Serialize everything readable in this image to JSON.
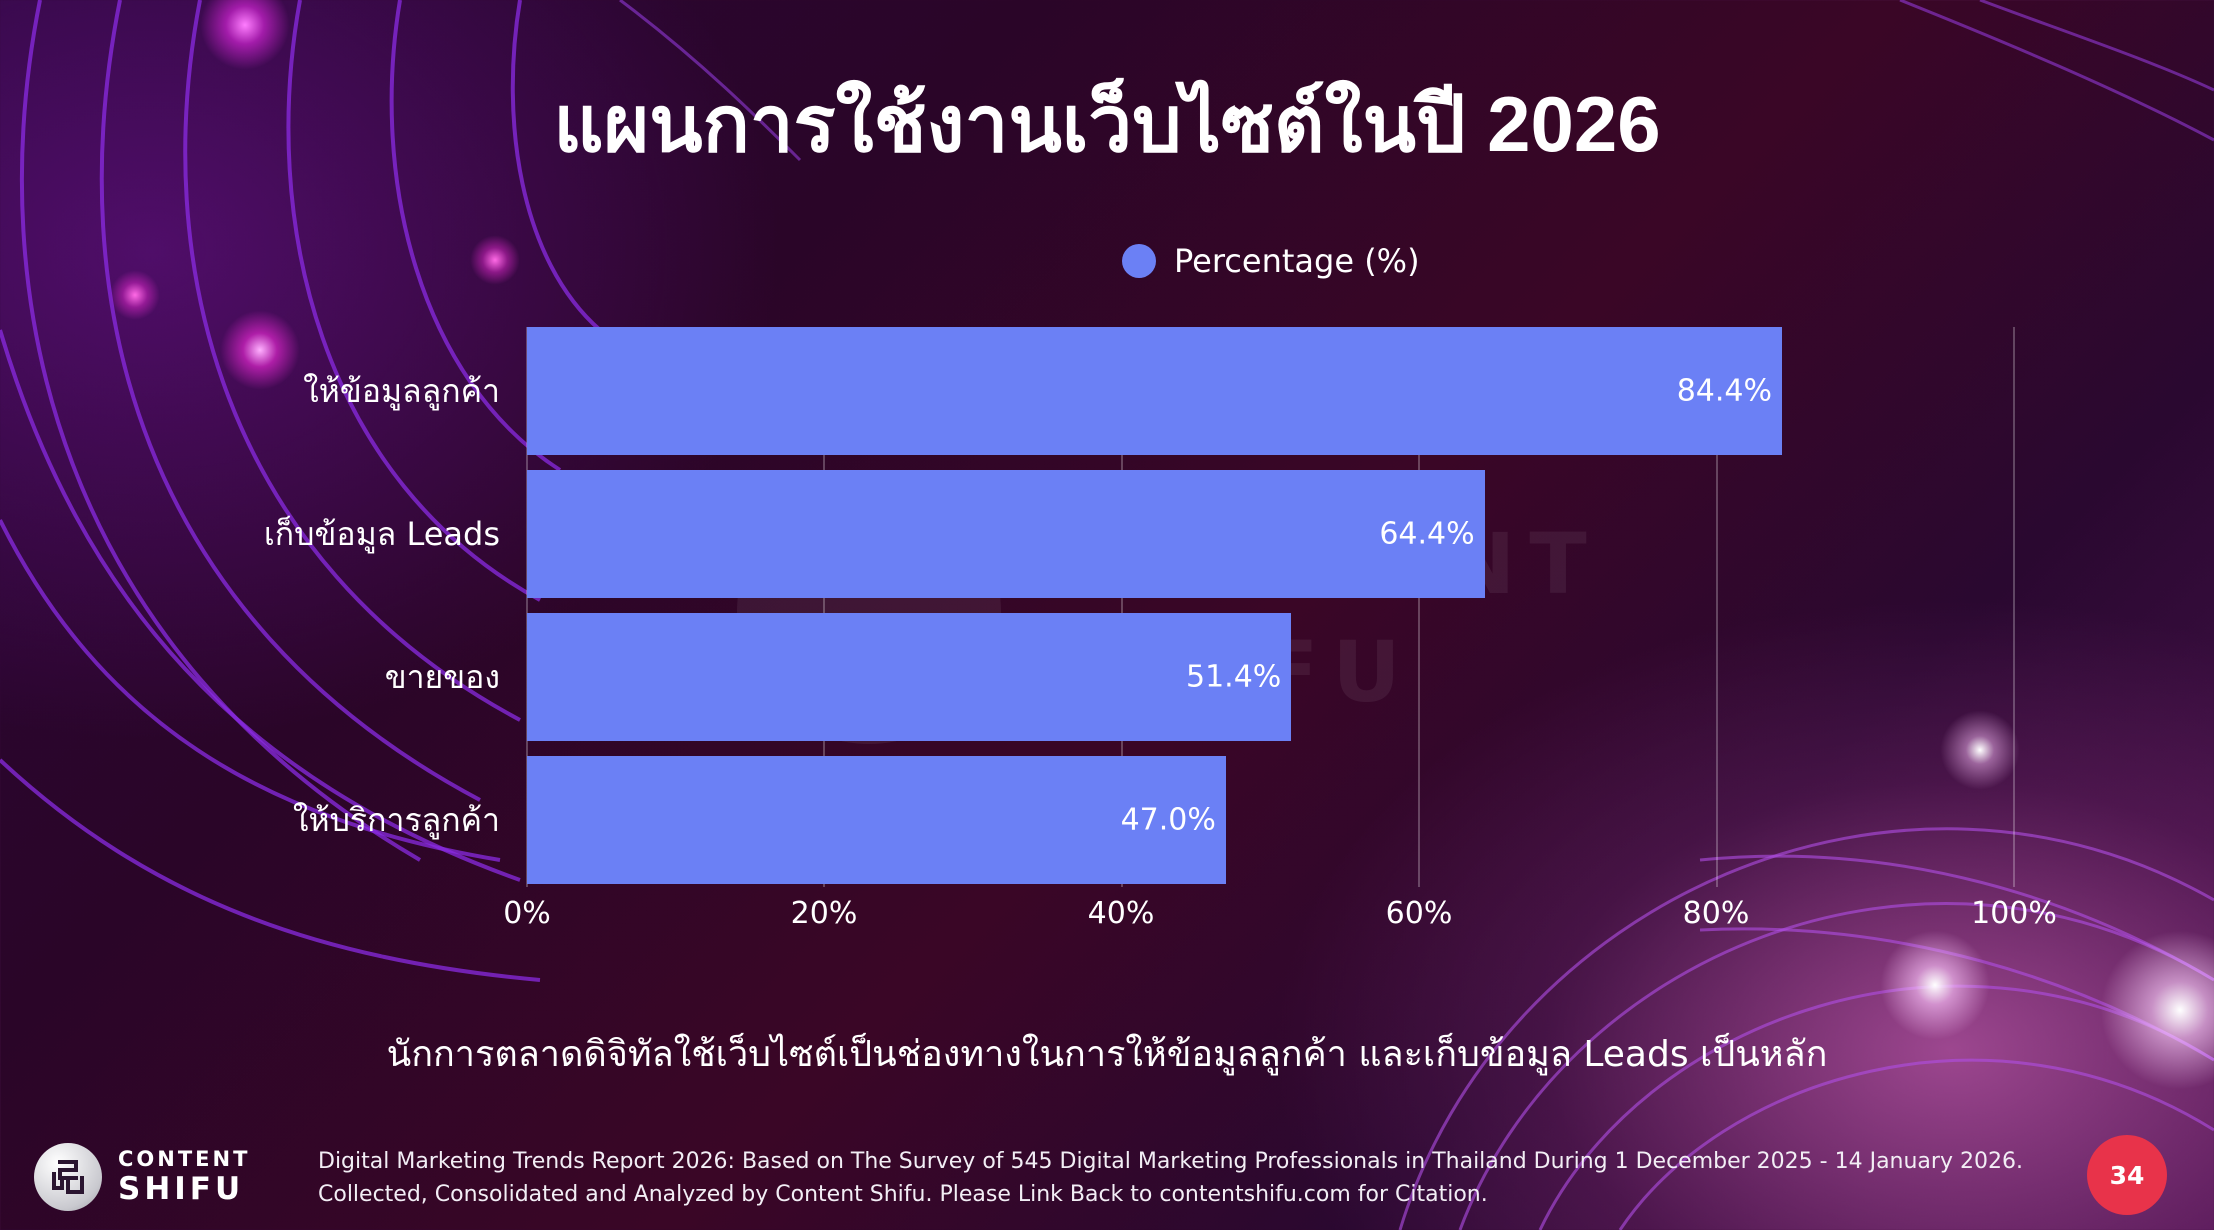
{
  "title": "แผนการใช้งานเว็บไซต์ในปี 2026",
  "colors": {
    "bar": "#6b80f5",
    "page_badge": "#e8334a"
  },
  "legend": {
    "label": "Percentage (%)",
    "icon": "circle-marker-icon"
  },
  "chart_data": {
    "type": "bar",
    "orientation": "horizontal",
    "title": "แผนการใช้งานเว็บไซต์ในปี 2026",
    "categories": [
      "ให้ข้อมูลลูกค้า",
      "เก็บข้อมูล Leads",
      "ขายของ",
      "ให้บริการลูกค้า"
    ],
    "series": [
      {
        "name": "Percentage (%)",
        "values": [
          84.4,
          64.4,
          51.4,
          47.0
        ]
      }
    ],
    "value_labels": [
      "84.4%",
      "64.4%",
      "51.4%",
      "47.0%"
    ],
    "xlabel": "",
    "ylabel": "",
    "xlim": [
      0,
      100
    ],
    "x_ticks": [
      "0%",
      "20%",
      "40%",
      "60%",
      "80%",
      "100%"
    ],
    "grid": true,
    "legend_position": "top"
  },
  "caption": "นักการตลาดดิจิทัลใช้เว็บไซต์เป็นช่องทางในการให้ข้อมูลลูกค้า และเก็บข้อมูล Leads เป็นหลัก",
  "watermark": {
    "line1": "CONTENT",
    "line2": "SHIFU"
  },
  "footer": {
    "logo": {
      "line1": "CONTENT",
      "line2": "SHIFU",
      "icon": "content-shifu-logo-icon"
    },
    "source_line1": "Digital Marketing Trends Report 2026: Based on The Survey of 545 Digital Marketing Professionals in Thailand During 1 December 2025 - 14 January 2026.",
    "source_line2": "Collected, Consolidated and Analyzed by Content Shifu. Please Link Back to contentshifu.com for Citation.",
    "page_number": "34"
  }
}
